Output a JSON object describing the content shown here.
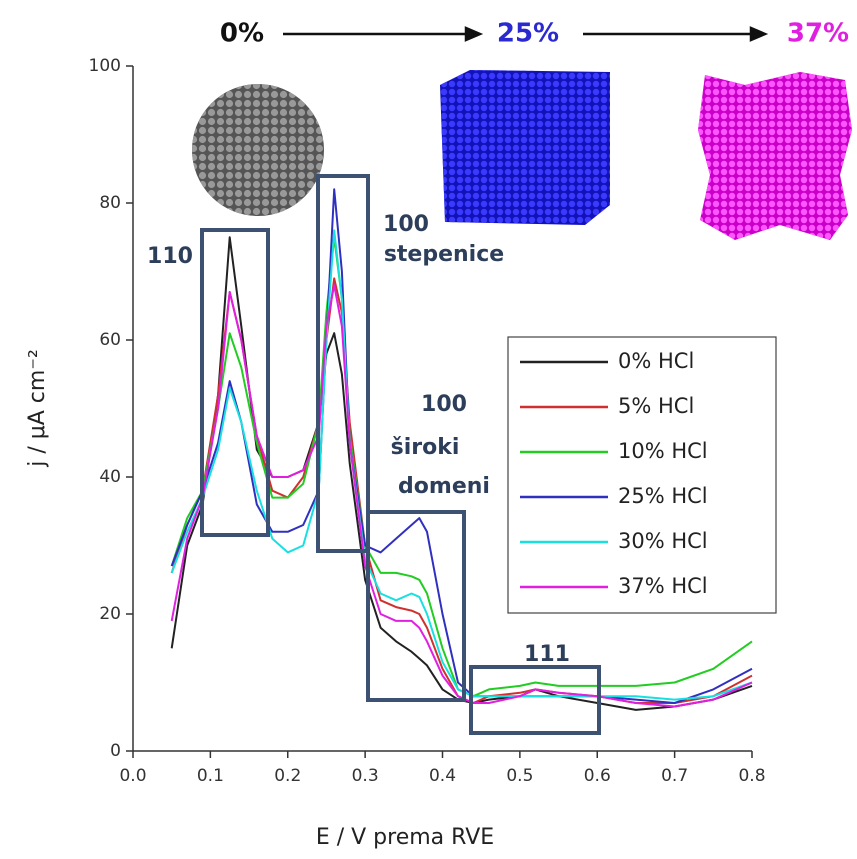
{
  "chart_data": {
    "type": "line",
    "xlabel": "E / V prema RVE",
    "ylabel": "j / μA cm⁻²",
    "x": [
      0.05,
      0.07,
      0.09,
      0.11,
      0.125,
      0.14,
      0.16,
      0.18,
      0.2,
      0.22,
      0.24,
      0.25,
      0.26,
      0.27,
      0.28,
      0.3,
      0.32,
      0.34,
      0.36,
      0.37,
      0.38,
      0.4,
      0.42,
      0.44,
      0.46,
      0.5,
      0.52,
      0.55,
      0.6,
      0.65,
      0.7,
      0.75,
      0.8
    ],
    "series": [
      {
        "name": "0% HCl",
        "color": "#222222",
        "values": [
          15,
          30,
          36,
          52,
          75,
          62,
          44,
          40,
          40,
          41,
          48,
          58,
          61,
          55,
          42,
          25,
          18,
          16,
          14.5,
          13.5,
          12.5,
          9,
          7.5,
          7,
          7.5,
          8,
          9,
          8,
          7,
          6,
          6.5,
          7.5,
          9.5
        ]
      },
      {
        "name": "5% HCl",
        "color": "#d03030",
        "values": [
          26,
          33,
          38,
          52,
          67,
          60,
          46,
          38,
          37,
          40,
          48,
          60,
          69,
          64,
          48,
          30,
          22,
          21,
          20.5,
          20,
          18,
          12,
          8,
          7,
          8,
          8.5,
          9,
          8.5,
          8,
          7,
          7,
          8,
          11
        ]
      },
      {
        "name": "10% HCl",
        "color": "#22cc22",
        "values": [
          27,
          34,
          38,
          50,
          61,
          56,
          45,
          37,
          37,
          39,
          48,
          64,
          75,
          66,
          46,
          30,
          26,
          26,
          25.5,
          25,
          23,
          15,
          9,
          8,
          9,
          9.5,
          10,
          9.5,
          9.5,
          9.5,
          10,
          12,
          16
        ]
      },
      {
        "name": "25% HCl",
        "color": "#3030c0",
        "values": [
          27,
          33,
          38,
          45,
          54,
          48,
          36,
          32,
          32,
          33,
          38,
          60,
          82,
          70,
          45,
          30,
          29,
          31,
          33,
          34,
          32,
          20,
          10,
          8,
          8,
          8,
          8,
          8,
          8,
          7.5,
          7,
          9,
          12
        ]
      },
      {
        "name": "30% HCl",
        "color": "#18e0e0",
        "values": [
          26,
          32,
          37,
          44,
          53,
          48,
          38,
          31,
          29,
          30,
          38,
          60,
          76,
          66,
          45,
          28,
          23,
          22,
          23,
          22.5,
          20,
          13,
          9,
          8,
          8,
          8,
          8,
          8,
          8,
          8,
          7.5,
          8,
          10
        ]
      },
      {
        "name": "37% HCl",
        "color": "#e020e0",
        "values": [
          19,
          31,
          37,
          50,
          67,
          60,
          46,
          40,
          40,
          41,
          46,
          62,
          68,
          62,
          45,
          27,
          20,
          19,
          19,
          18,
          16,
          11,
          8,
          7,
          7,
          8,
          9,
          8.5,
          8,
          7,
          6.5,
          7.5,
          10
        ]
      }
    ],
    "xlim": [
      0,
      0.8
    ],
    "xticks": [
      {
        "value": 0,
        "label": "0.0"
      },
      0.1,
      0.2,
      0.3,
      0.4,
      0.5,
      0.6,
      0.7,
      0.8
    ],
    "ylim": [
      0,
      100
    ],
    "yticks": [
      0,
      20,
      40,
      60,
      80,
      100
    ],
    "grid": false,
    "annotations": [
      "0%",
      "25%",
      "37%",
      "110",
      "100",
      "stepenice",
      "100",
      "široki",
      "domeni",
      "111"
    ]
  }
}
